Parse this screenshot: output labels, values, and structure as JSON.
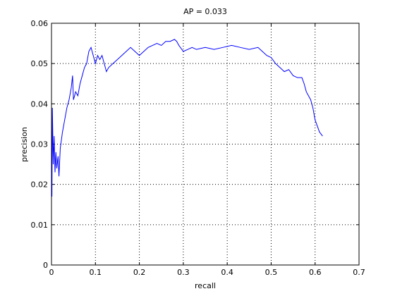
{
  "chart_data": {
    "type": "line",
    "title": "AP = 0.033",
    "x_label": "recall",
    "y_label": "precision",
    "xlim": [
      0,
      0.7
    ],
    "ylim": [
      0,
      0.06
    ],
    "xticks": [
      0,
      0.1,
      0.2,
      0.3,
      0.4,
      0.5,
      0.6,
      0.7
    ],
    "yticks": [
      0,
      0.01,
      0.02,
      0.03,
      0.04,
      0.05,
      0.06
    ],
    "grid": true,
    "x": [
      0.001,
      0.002,
      0.004,
      0.006,
      0.008,
      0.01,
      0.012,
      0.015,
      0.017,
      0.02,
      0.025,
      0.03,
      0.035,
      0.04,
      0.045,
      0.048,
      0.05,
      0.055,
      0.06,
      0.065,
      0.07,
      0.075,
      0.08,
      0.085,
      0.09,
      0.095,
      0.1,
      0.105,
      0.11,
      0.115,
      0.12,
      0.125,
      0.13,
      0.14,
      0.15,
      0.16,
      0.17,
      0.18,
      0.19,
      0.2,
      0.21,
      0.22,
      0.23,
      0.24,
      0.25,
      0.26,
      0.27,
      0.28,
      0.285,
      0.29,
      0.3,
      0.31,
      0.32,
      0.33,
      0.35,
      0.37,
      0.39,
      0.41,
      0.43,
      0.45,
      0.47,
      0.48,
      0.49,
      0.5,
      0.51,
      0.52,
      0.53,
      0.54,
      0.55,
      0.56,
      0.57,
      0.575,
      0.58,
      0.59,
      0.595,
      0.6,
      0.61,
      0.617
    ],
    "series": [
      {
        "name": "precision",
        "color": "#0000ff",
        "values": [
          0.017,
          0.039,
          0.025,
          0.032,
          0.023,
          0.028,
          0.024,
          0.027,
          0.022,
          0.029,
          0.033,
          0.036,
          0.039,
          0.041,
          0.044,
          0.047,
          0.041,
          0.043,
          0.042,
          0.045,
          0.047,
          0.049,
          0.05,
          0.053,
          0.054,
          0.052,
          0.05,
          0.052,
          0.051,
          0.052,
          0.05,
          0.048,
          0.049,
          0.05,
          0.051,
          0.052,
          0.053,
          0.054,
          0.053,
          0.052,
          0.053,
          0.054,
          0.0545,
          0.055,
          0.0545,
          0.0555,
          0.0555,
          0.056,
          0.0555,
          0.0545,
          0.053,
          0.0535,
          0.054,
          0.0535,
          0.054,
          0.0535,
          0.054,
          0.0545,
          0.054,
          0.0535,
          0.054,
          0.053,
          0.052,
          0.0515,
          0.05,
          0.049,
          0.048,
          0.0485,
          0.047,
          0.0465,
          0.0465,
          0.045,
          0.043,
          0.041,
          0.039,
          0.036,
          0.033,
          0.032
        ]
      }
    ]
  }
}
